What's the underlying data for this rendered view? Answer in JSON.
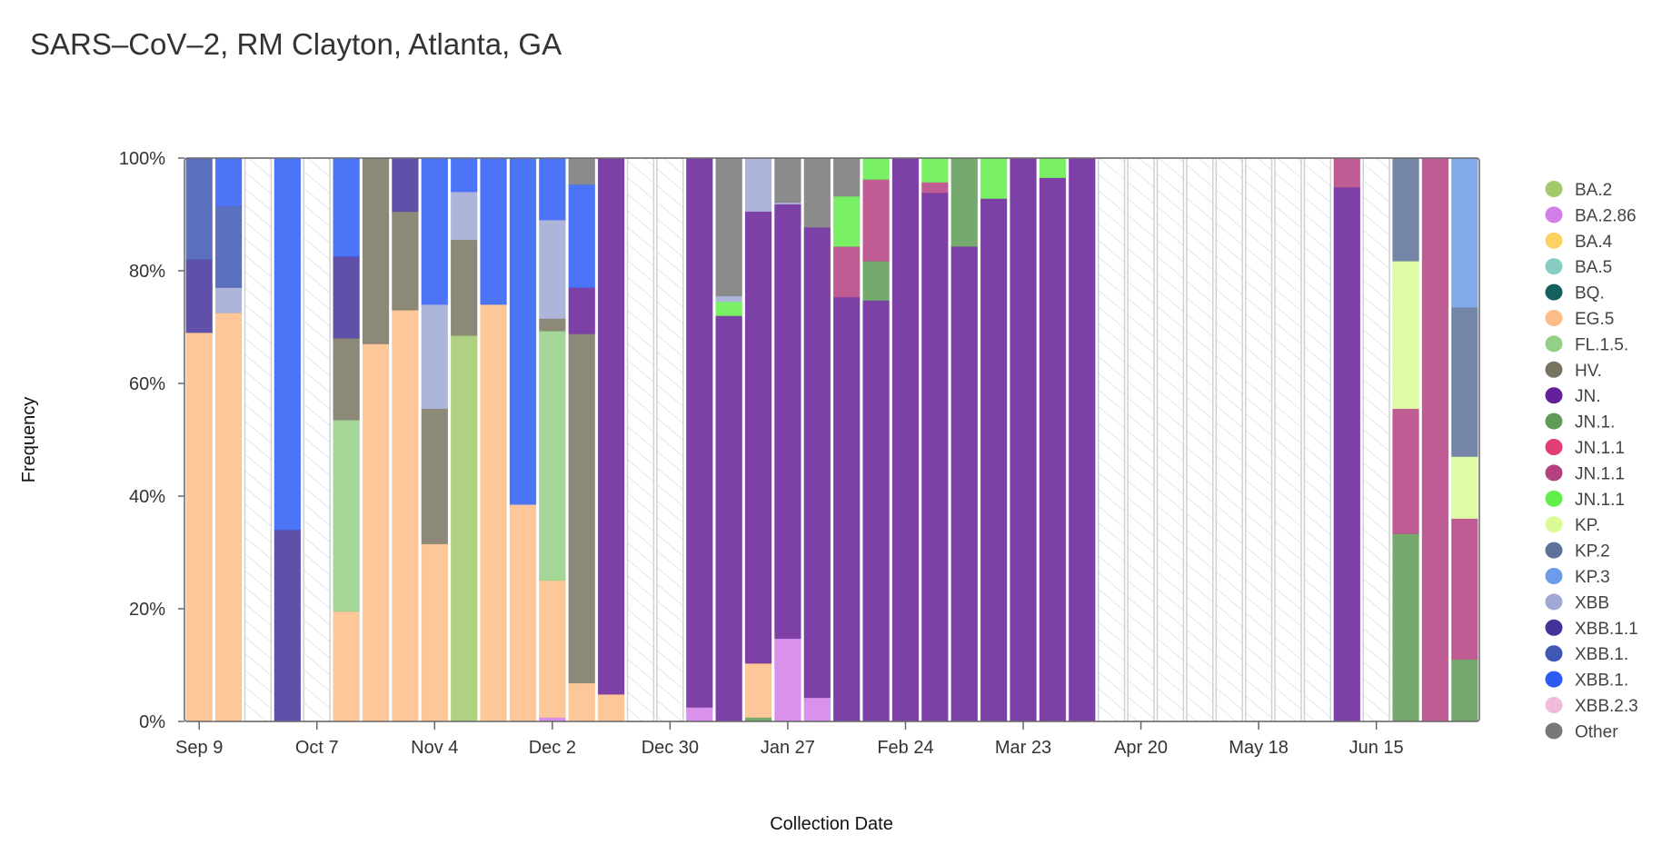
{
  "chart_data": {
    "type": "bar",
    "stacked": true,
    "title": "SARS–CoV–2, RM Clayton, Atlanta, GA",
    "xlabel": "Collection Date",
    "ylabel": "Frequency",
    "ylim": [
      0,
      100
    ],
    "yticks": [
      "0%",
      "20%",
      "40%",
      "60%",
      "80%",
      "100%"
    ],
    "xticks": [
      {
        "week": 0,
        "label": "Sep 9"
      },
      {
        "week": 4,
        "label": "Oct 7"
      },
      {
        "week": 8,
        "label": "Nov 4"
      },
      {
        "week": 12,
        "label": "Dec 2"
      },
      {
        "week": 16,
        "label": "Dec 30"
      },
      {
        "week": 20,
        "label": "Jan 27"
      },
      {
        "week": 24,
        "label": "Feb 24"
      },
      {
        "week": 28,
        "label": "Mar 23"
      },
      {
        "week": 32,
        "label": "Apr 20"
      },
      {
        "week": 36,
        "label": "May 18"
      },
      {
        "week": 40,
        "label": "Jun 15"
      }
    ],
    "legend_placement": "right",
    "legend": [
      {
        "name": "BA.2",
        "color": "#a3c96c"
      },
      {
        "name": "BA.2.86",
        "color": "#d27ee8"
      },
      {
        "name": "BA.4",
        "color": "#fdd262"
      },
      {
        "name": "BA.5",
        "color": "#86ccc3"
      },
      {
        "name": "BQ.",
        "color": "#165f5f"
      },
      {
        "name": "EG.5",
        "color": "#fdbd88"
      },
      {
        "name": "FL.1.5.",
        "color": "#93cf85"
      },
      {
        "name": "HV.",
        "color": "#787462"
      },
      {
        "name": "JN.",
        "color": "#651f98"
      },
      {
        "name": "JN.1.",
        "color": "#5d9b56"
      },
      {
        "name": "JN.1.1",
        "color": "#e23e74"
      },
      {
        "name": "JN.1.1",
        "color": "#b34080"
      },
      {
        "name": "JN.1.1",
        "color": "#63ef4a"
      },
      {
        "name": "KP.",
        "color": "#d9fd94"
      },
      {
        "name": "KP.2",
        "color": "#5d7199"
      },
      {
        "name": "KP.3",
        "color": "#6c9ce9"
      },
      {
        "name": "XBB",
        "color": "#9fa8d5"
      },
      {
        "name": "XBB.1.1",
        "color": "#43329a"
      },
      {
        "name": "XBB.1.",
        "color": "#3f57b5"
      },
      {
        "name": "XBB.1.",
        "color": "#2d5cf5"
      },
      {
        "name": "XBB.2.3",
        "color": "#f2bbdc"
      },
      {
        "name": "Other",
        "color": "#777777"
      }
    ],
    "weeks_note": "segments are [legend index, percent], stacked bottom-up; empty list = no data",
    "weeks": [
      [
        [
          5,
          69
        ],
        [
          17,
          13
        ],
        [
          18,
          18
        ]
      ],
      [
        [
          5,
          72.5
        ],
        [
          16,
          4.5
        ],
        [
          18,
          14.5
        ],
        [
          19,
          8.5
        ]
      ],
      [],
      [
        [
          17,
          34
        ],
        [
          19,
          66
        ]
      ],
      [],
      [
        [
          5,
          19.5
        ],
        [
          6,
          34
        ],
        [
          7,
          14.5
        ],
        [
          17,
          14.5
        ],
        [
          19,
          17.5
        ]
      ],
      [
        [
          5,
          67
        ],
        [
          7,
          33
        ]
      ],
      [
        [
          5,
          73
        ],
        [
          7,
          17.5
        ],
        [
          17,
          9.5
        ]
      ],
      [
        [
          5,
          31.5
        ],
        [
          7,
          24
        ],
        [
          16,
          18.5
        ],
        [
          19,
          26
        ]
      ],
      [
        [
          0,
          68.5
        ],
        [
          7,
          17
        ],
        [
          16,
          8.5
        ],
        [
          19,
          6
        ]
      ],
      [
        [
          5,
          74
        ],
        [
          19,
          26
        ]
      ],
      [
        [
          5,
          38.5
        ],
        [
          19,
          61.5
        ]
      ],
      [
        [
          1,
          0.7
        ],
        [
          5,
          24.3
        ],
        [
          6,
          44.3
        ],
        [
          7,
          2.2
        ],
        [
          16,
          17.5
        ],
        [
          19,
          11
        ]
      ],
      [
        [
          5,
          6.8
        ],
        [
          7,
          62
        ],
        [
          8,
          8.2
        ],
        [
          19,
          18.3
        ],
        [
          21,
          4.7
        ]
      ],
      [
        [
          5,
          4.8
        ],
        [
          8,
          95.2
        ]
      ],
      [],
      [],
      [
        [
          1,
          2.5
        ],
        [
          8,
          97.5
        ]
      ],
      [
        [
          8,
          72
        ],
        [
          12,
          2.5
        ],
        [
          16,
          1
        ],
        [
          21,
          24.5
        ]
      ],
      [
        [
          9,
          0.7
        ],
        [
          5,
          9.6
        ],
        [
          8,
          80.2
        ],
        [
          16,
          9.5
        ]
      ],
      [
        [
          1,
          14.7
        ],
        [
          8,
          77.1
        ],
        [
          16,
          0.3
        ],
        [
          21,
          7.9
        ]
      ],
      [
        [
          1,
          4.2
        ],
        [
          8,
          83.5
        ],
        [
          21,
          12.3
        ]
      ],
      [
        [
          8,
          75.3
        ],
        [
          11,
          9
        ],
        [
          12,
          8.9
        ],
        [
          21,
          6.8
        ]
      ],
      [
        [
          8,
          74.7
        ],
        [
          9,
          7
        ],
        [
          11,
          14.5
        ],
        [
          12,
          3.8
        ]
      ],
      [
        [
          8,
          100
        ]
      ],
      [
        [
          8,
          93.8
        ],
        [
          11,
          1.9
        ],
        [
          12,
          4.3
        ]
      ],
      [
        [
          8,
          84.3
        ],
        [
          9,
          15.7
        ]
      ],
      [
        [
          8,
          92.8
        ],
        [
          12,
          7.2
        ]
      ],
      [
        [
          8,
          100
        ]
      ],
      [
        [
          8,
          96.5
        ],
        [
          12,
          3.5
        ]
      ],
      [
        [
          8,
          100
        ]
      ],
      [],
      [],
      [],
      [],
      [],
      [],
      [],
      [],
      [
        [
          8,
          94.8
        ],
        [
          11,
          5.2
        ]
      ],
      [],
      [
        [
          9,
          33.3
        ],
        [
          11,
          22.2
        ],
        [
          13,
          26.2
        ],
        [
          14,
          18.3
        ]
      ],
      [
        [
          11,
          100
        ]
      ],
      [
        [
          9,
          11
        ],
        [
          11,
          25
        ],
        [
          13,
          11
        ],
        [
          14,
          26.5
        ],
        [
          15,
          26.5
        ]
      ]
    ]
  }
}
